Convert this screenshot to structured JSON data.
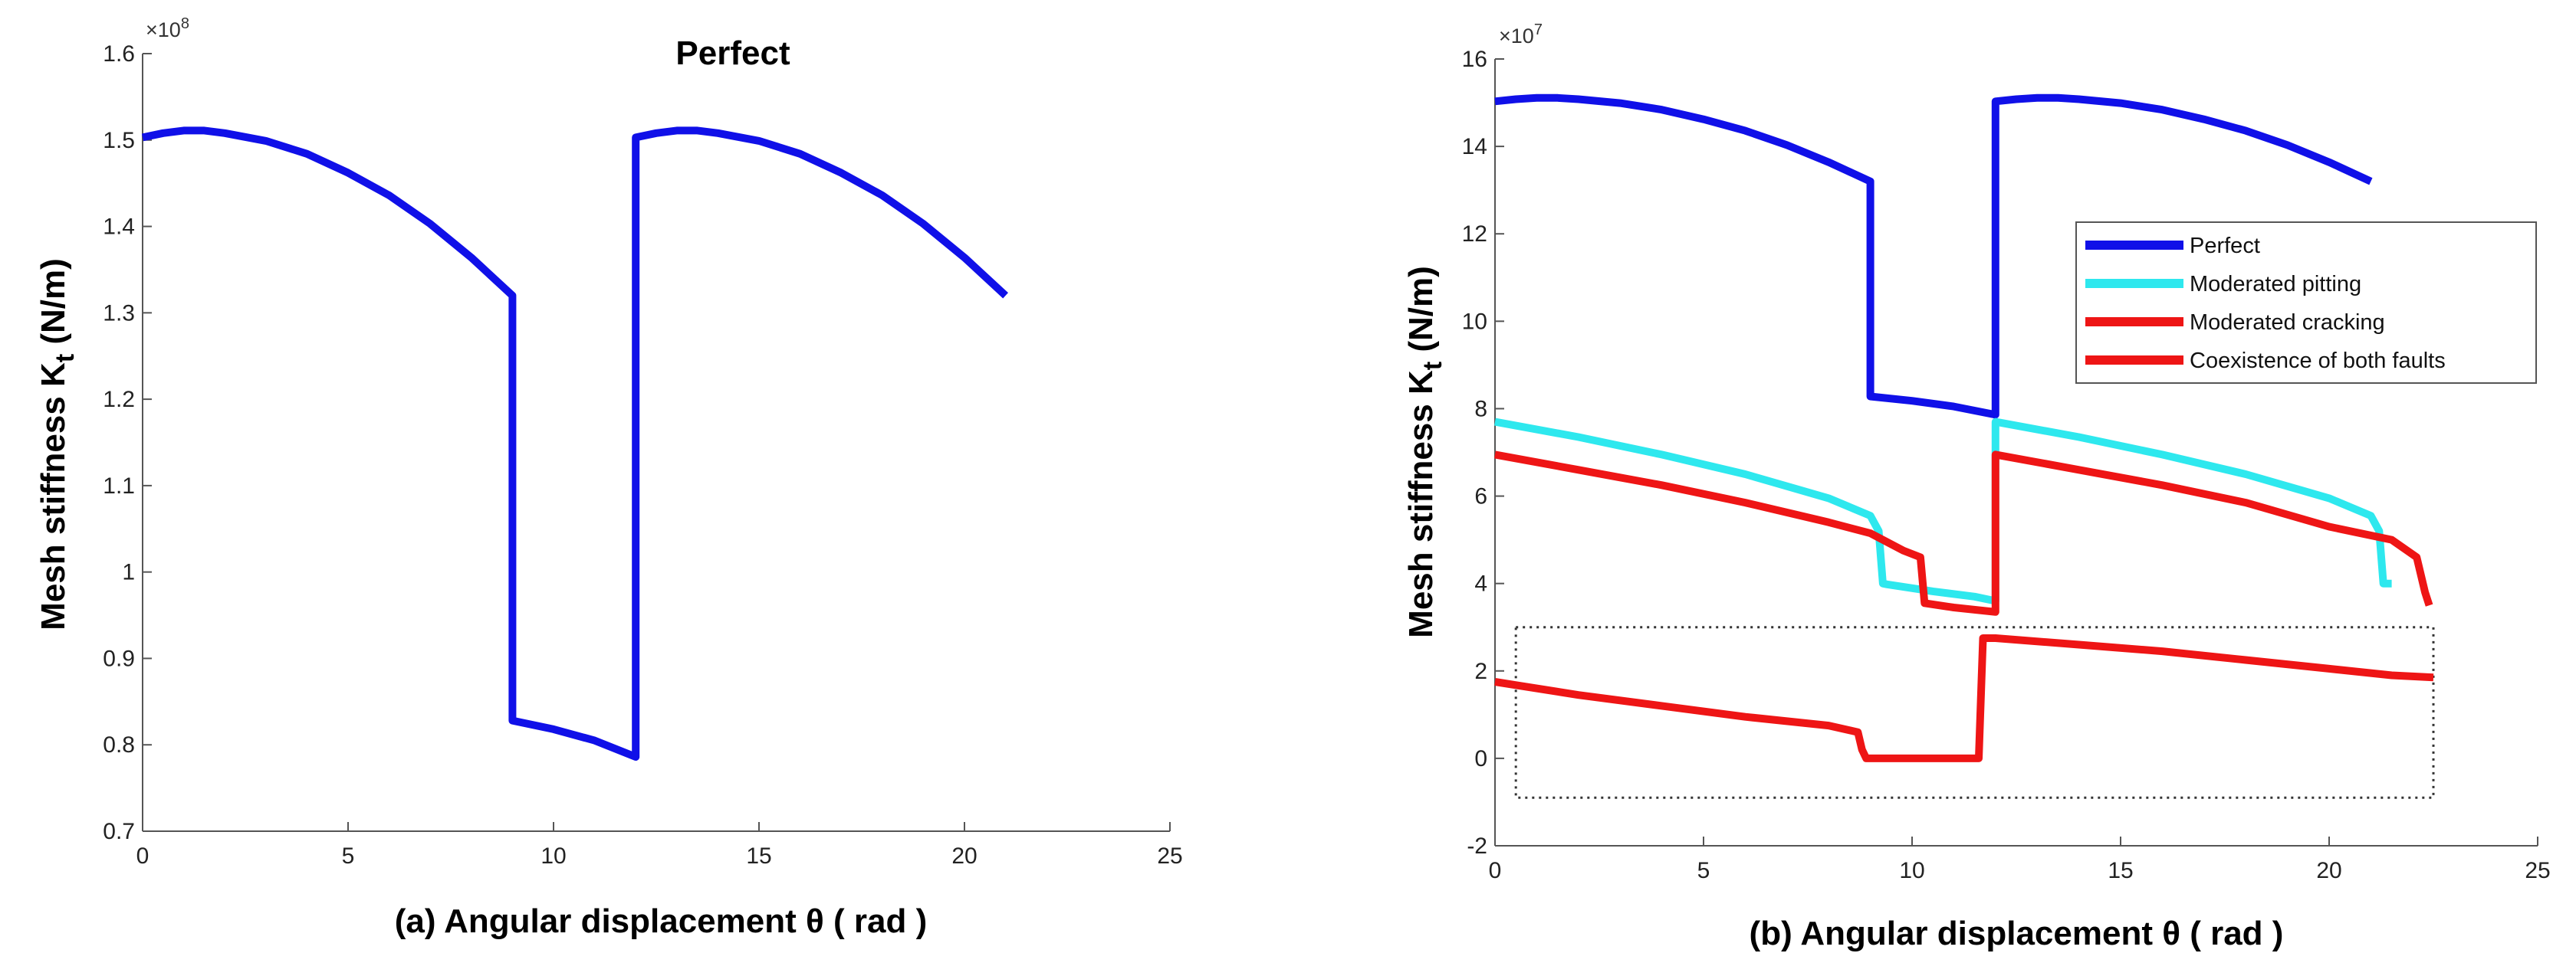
{
  "chart_data": [
    {
      "type": "line",
      "panel": "a",
      "title": "Perfect",
      "xlabel": "(a) Angular displacement   θ ( rad )",
      "ylabel_main": "Mesh stiffness K",
      "ylabel_sub": "t",
      "ylabel_unit": " (N/m)",
      "exponent_base": "×10",
      "exponent_power": "8",
      "xlim": [
        0,
        25
      ],
      "ylim": [
        0.7,
        1.6
      ],
      "xticks": [
        0,
        5,
        10,
        15,
        20,
        25
      ],
      "xtick_labels": [
        "0",
        "5",
        "10",
        "15",
        "20",
        "25"
      ],
      "yticks": [
        0.7,
        0.8,
        0.9,
        1.0,
        1.1,
        1.2,
        1.3,
        1.4,
        1.5,
        1.6
      ],
      "ytick_labels": [
        "0.7",
        "0.8",
        "0.9",
        "1",
        "1.1",
        "1.2",
        "1.3",
        "1.4",
        "1.5",
        "1.6"
      ],
      "series": [
        {
          "name": "Perfect",
          "color": "#1010e8",
          "x": [
            0,
            0.5,
            1,
            1.5,
            2,
            3,
            4,
            5,
            6,
            7,
            8,
            9,
            9,
            10,
            11,
            12,
            12,
            12.5,
            13,
            13.5,
            14,
            15,
            16,
            17,
            18,
            19,
            20,
            21
          ],
          "y": [
            1.503,
            1.508,
            1.511,
            1.511,
            1.508,
            1.499,
            1.484,
            1.462,
            1.436,
            1.403,
            1.364,
            1.32,
            0.828,
            0.818,
            0.805,
            0.786,
            1.503,
            1.508,
            1.511,
            1.511,
            1.508,
            1.499,
            1.484,
            1.462,
            1.436,
            1.403,
            1.364,
            1.32
          ]
        }
      ]
    },
    {
      "type": "line",
      "panel": "b",
      "title": "",
      "xlabel": "(b) Angular displacement  θ ( rad )",
      "ylabel_main": "Mesh stiffness K",
      "ylabel_sub": "t",
      "ylabel_unit": " (N/m)",
      "exponent_base": "×10",
      "exponent_power": "7",
      "xlim": [
        0,
        25
      ],
      "ylim": [
        -2,
        16
      ],
      "xticks": [
        0,
        5,
        10,
        15,
        20,
        25
      ],
      "xtick_labels": [
        "0",
        "5",
        "10",
        "15",
        "20",
        "25"
      ],
      "yticks": [
        -2,
        0,
        2,
        4,
        6,
        8,
        10,
        12,
        14,
        16
      ],
      "ytick_labels": [
        "-2",
        "0",
        "2",
        "4",
        "6",
        "8",
        "10",
        "12",
        "14",
        "16"
      ],
      "legend_position": "right-center",
      "highlight_box": {
        "x_range": [
          0.5,
          22.5
        ],
        "y_range": [
          -0.9,
          3.0
        ]
      },
      "series": [
        {
          "name": "Perfect",
          "color": "#1010e8",
          "x": [
            0,
            0.5,
            1,
            1.5,
            2,
            3,
            4,
            5,
            6,
            7,
            8,
            9,
            9,
            10,
            11,
            12,
            12,
            12.5,
            13,
            13.5,
            14,
            15,
            16,
            17,
            18,
            19,
            20,
            21
          ],
          "y": [
            15.03,
            15.08,
            15.11,
            15.11,
            15.08,
            14.99,
            14.84,
            14.62,
            14.36,
            14.03,
            13.64,
            13.2,
            8.28,
            8.18,
            8.05,
            7.86,
            15.03,
            15.08,
            15.11,
            15.11,
            15.08,
            14.99,
            14.84,
            14.62,
            14.36,
            14.03,
            13.64,
            13.2
          ]
        },
        {
          "name": "Moderated pitting",
          "color": "#2ee8ee",
          "x": [
            0,
            2,
            4,
            6,
            8,
            9,
            9.2,
            9.3,
            9.4,
            10.5,
            11.5,
            12,
            12,
            14,
            16,
            18,
            20,
            21,
            21.2,
            21.3,
            21.5
          ],
          "y": [
            7.7,
            7.35,
            6.95,
            6.5,
            5.95,
            5.55,
            5.2,
            4.0,
            3.98,
            3.82,
            3.7,
            3.6,
            7.7,
            7.35,
            6.95,
            6.5,
            5.95,
            5.55,
            5.2,
            4.0,
            4.0
          ]
        },
        {
          "name": "Moderated cracking",
          "color": "#ee1515",
          "x": [
            0,
            2,
            4,
            6,
            8,
            9,
            9.8,
            10.2,
            10.3,
            11,
            12,
            12,
            14,
            16,
            18,
            20,
            21.5,
            22.1,
            22.3,
            22.4
          ],
          "y": [
            6.95,
            6.6,
            6.25,
            5.85,
            5.4,
            5.15,
            4.75,
            4.6,
            3.55,
            3.45,
            3.35,
            6.95,
            6.6,
            6.25,
            5.85,
            5.3,
            5.0,
            4.6,
            3.8,
            3.5
          ]
        },
        {
          "name": "Coexistence of both faults",
          "color": "#ee1515",
          "x": [
            0,
            2,
            4,
            6,
            8,
            8.7,
            8.8,
            8.9,
            10,
            11,
            11.6,
            11.7,
            12,
            14,
            16,
            18,
            20,
            21.5,
            22.5
          ],
          "y": [
            1.75,
            1.45,
            1.2,
            0.95,
            0.75,
            0.6,
            0.2,
            0.0,
            0.0,
            0.0,
            0.0,
            2.75,
            2.75,
            2.6,
            2.45,
            2.25,
            2.05,
            1.9,
            1.85
          ]
        }
      ]
    }
  ]
}
